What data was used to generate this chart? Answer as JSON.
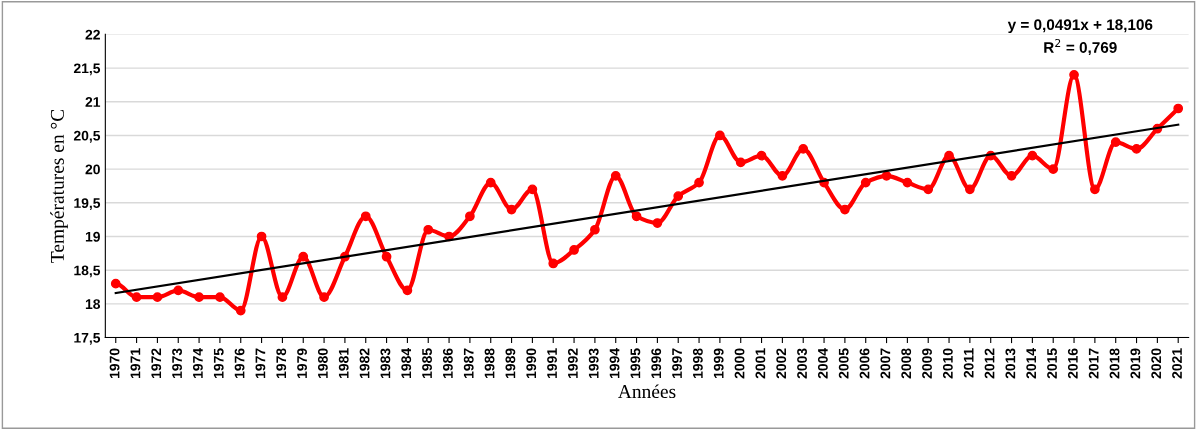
{
  "chart_data": {
    "type": "line",
    "xlabel": "Années",
    "ylabel": "Températures en °C",
    "categories": [
      "1970",
      "1971",
      "1972",
      "1973",
      "1974",
      "1975",
      "1976",
      "1977",
      "1978",
      "1979",
      "1980",
      "1981",
      "1982",
      "1983",
      "1984",
      "1985",
      "1986",
      "1987",
      "1988",
      "1989",
      "1990",
      "1991",
      "1992",
      "1993",
      "1994",
      "1995",
      "1996",
      "1997",
      "1998",
      "1999",
      "2000",
      "2001",
      "2002",
      "2003",
      "2004",
      "2005",
      "2006",
      "2007",
      "2008",
      "2009",
      "2010",
      "2011",
      "2012",
      "2013",
      "2014",
      "2015",
      "2016",
      "2017",
      "2018",
      "2019",
      "2020",
      "2021"
    ],
    "series": [
      {
        "color": "#ff0000",
        "marker": "circle",
        "values": [
          18.3,
          18.1,
          18.1,
          18.2,
          18.1,
          18.1,
          17.9,
          19.0,
          18.1,
          18.7,
          18.1,
          18.7,
          19.3,
          18.7,
          18.2,
          19.1,
          19.0,
          19.3,
          19.8,
          19.4,
          19.7,
          18.6,
          18.8,
          19.1,
          19.9,
          19.3,
          19.2,
          19.6,
          19.8,
          20.5,
          20.1,
          20.2,
          19.9,
          20.3,
          19.8,
          19.4,
          19.8,
          19.9,
          19.8,
          19.7,
          20.2,
          19.7,
          20.2,
          19.9,
          20.2,
          20.0,
          21.4,
          19.7,
          20.4,
          20.3,
          20.6,
          20.9
        ]
      },
      {
        "color": "#000000",
        "marker": "none",
        "values": [
          18.16,
          null,
          null,
          null,
          null,
          null,
          null,
          null,
          null,
          null,
          null,
          null,
          null,
          null,
          null,
          null,
          null,
          null,
          null,
          null,
          null,
          null,
          null,
          null,
          null,
          null,
          null,
          null,
          null,
          null,
          null,
          null,
          null,
          null,
          null,
          null,
          null,
          null,
          null,
          null,
          null,
          null,
          null,
          null,
          null,
          null,
          null,
          null,
          null,
          null,
          null,
          20.66
        ]
      }
    ],
    "ylim": [
      17.5,
      22
    ],
    "yticks": [
      {
        "value": 17.5,
        "label": "17,5"
      },
      18,
      {
        "value": 18.5,
        "label": "18,5"
      },
      19,
      {
        "value": 19.5,
        "label": "19,5"
      },
      20,
      {
        "value": 20.5,
        "label": "20,5"
      },
      21,
      {
        "value": 21.5,
        "label": "21,5"
      },
      22
    ],
    "grid": "y",
    "line_style": "solid",
    "annotations": [
      "y = 0,0491x + 18,106\nR$^{2}$ = 0,769"
    ]
  }
}
